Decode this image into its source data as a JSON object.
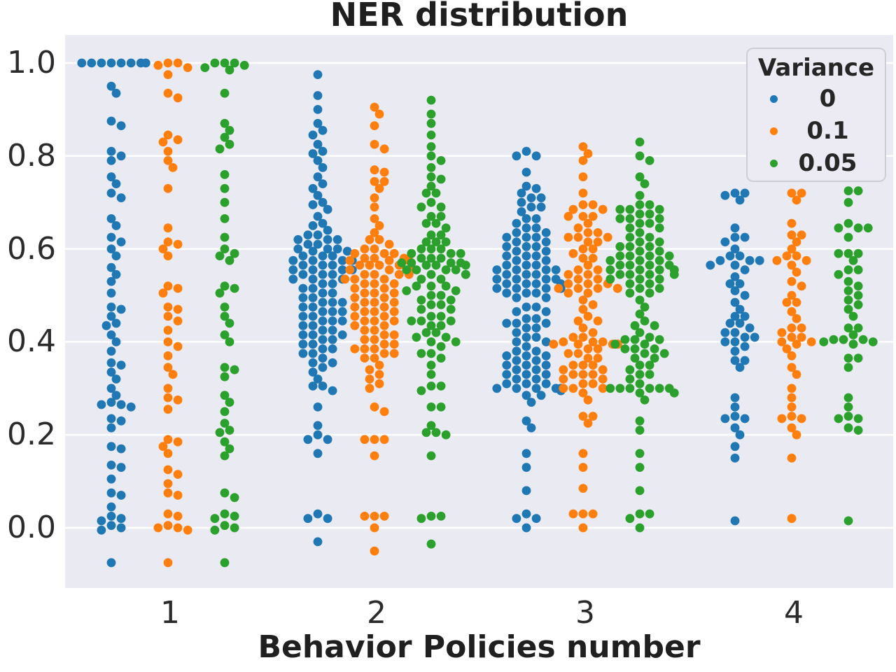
{
  "chart_data": {
    "type": "scatter",
    "subtype": "swarm",
    "title": "NER distribution",
    "xlabel": "Behavior Policies number",
    "ylabel": "",
    "categories": [
      "1",
      "2",
      "3",
      "4"
    ],
    "ytick_labels": [
      "0.0",
      "0.2",
      "0.4",
      "0.6",
      "0.8",
      "1.0"
    ],
    "yticks": [
      0.0,
      0.2,
      0.4,
      0.6,
      0.8,
      1.0
    ],
    "ylim": [
      -0.13,
      1.07
    ],
    "grid": true,
    "colors": {
      "plot_bg": "#eaeaf2",
      "grid": "#ffffff",
      "text": "#262626"
    },
    "legend": {
      "title": "Variance",
      "position": "upper-right",
      "entries": [
        {
          "label": "0",
          "color": "#1f77b4"
        },
        {
          "label": "0.1",
          "color": "#ff7f0e"
        },
        {
          "label": "0.05",
          "color": "#2ca02c"
        }
      ]
    },
    "series": [
      {
        "name": "0",
        "color": "#1f77b4",
        "values": [
          [
            1.0,
            1.0,
            1.0,
            1.0,
            1.0,
            1.0,
            1.0,
            1.0,
            0.95,
            0.935,
            0.875,
            0.865,
            0.81,
            0.8,
            0.79,
            0.755,
            0.74,
            0.72,
            0.71,
            0.665,
            0.65,
            0.625,
            0.615,
            0.6,
            0.585,
            0.56,
            0.545,
            0.53,
            0.505,
            0.475,
            0.47,
            0.455,
            0.44,
            0.435,
            0.415,
            0.4,
            0.38,
            0.355,
            0.35,
            0.335,
            0.32,
            0.3,
            0.285,
            0.27,
            0.265,
            0.265,
            0.26,
            0.235,
            0.23,
            0.215,
            0.175,
            0.17,
            0.135,
            0.13,
            0.105,
            0.075,
            0.07,
            0.045,
            0.025,
            0.02,
            0.015,
            0.005,
            0.0,
            -0.005,
            -0.075
          ],
          [
            0.975,
            0.93,
            0.9,
            0.87,
            0.855,
            0.845,
            0.825,
            0.81,
            0.805,
            0.79,
            0.775,
            0.755,
            0.74,
            0.73,
            0.715,
            0.7,
            0.695,
            0.685,
            0.67,
            0.655,
            0.65,
            0.64,
            0.63,
            0.63,
            0.62,
            0.62,
            0.62,
            0.61,
            0.61,
            0.6,
            0.6,
            0.6,
            0.595,
            0.595,
            0.585,
            0.585,
            0.585,
            0.575,
            0.575,
            0.575,
            0.575,
            0.565,
            0.565,
            0.565,
            0.555,
            0.555,
            0.555,
            0.555,
            0.545,
            0.545,
            0.545,
            0.535,
            0.535,
            0.535,
            0.525,
            0.525,
            0.515,
            0.515,
            0.505,
            0.505,
            0.495,
            0.495,
            0.485,
            0.485,
            0.485,
            0.475,
            0.475,
            0.465,
            0.465,
            0.465,
            0.455,
            0.455,
            0.445,
            0.445,
            0.445,
            0.435,
            0.435,
            0.425,
            0.425,
            0.415,
            0.415,
            0.415,
            0.405,
            0.405,
            0.395,
            0.395,
            0.385,
            0.385,
            0.375,
            0.375,
            0.365,
            0.355,
            0.355,
            0.345,
            0.335,
            0.32,
            0.305,
            0.305,
            0.295,
            0.26,
            0.22,
            0.2,
            0.19,
            0.19,
            0.16,
            0.03,
            0.02,
            0.02,
            -0.03
          ],
          [
            0.81,
            0.8,
            0.8,
            0.765,
            0.735,
            0.73,
            0.72,
            0.71,
            0.71,
            0.7,
            0.69,
            0.69,
            0.68,
            0.665,
            0.665,
            0.655,
            0.645,
            0.645,
            0.635,
            0.635,
            0.625,
            0.625,
            0.625,
            0.615,
            0.615,
            0.605,
            0.605,
            0.605,
            0.595,
            0.595,
            0.585,
            0.585,
            0.585,
            0.575,
            0.575,
            0.565,
            0.565,
            0.565,
            0.555,
            0.555,
            0.555,
            0.555,
            0.545,
            0.545,
            0.545,
            0.535,
            0.535,
            0.535,
            0.535,
            0.525,
            0.525,
            0.525,
            0.525,
            0.515,
            0.515,
            0.515,
            0.515,
            0.515,
            0.505,
            0.505,
            0.505,
            0.495,
            0.495,
            0.475,
            0.475,
            0.465,
            0.465,
            0.45,
            0.45,
            0.44,
            0.44,
            0.44,
            0.43,
            0.43,
            0.42,
            0.41,
            0.41,
            0.4,
            0.4,
            0.39,
            0.38,
            0.38,
            0.37,
            0.37,
            0.37,
            0.36,
            0.36,
            0.35,
            0.35,
            0.35,
            0.34,
            0.34,
            0.33,
            0.33,
            0.33,
            0.32,
            0.32,
            0.31,
            0.31,
            0.31,
            0.3,
            0.3,
            0.3,
            0.3,
            0.3,
            0.3,
            0.295,
            0.295,
            0.285,
            0.285,
            0.27,
            0.23,
            0.215,
            0.16,
            0.13,
            0.08,
            0.03,
            0.02,
            0.02,
            0.0
          ],
          [
            0.72,
            0.72,
            0.715,
            0.705,
            0.645,
            0.625,
            0.625,
            0.615,
            0.6,
            0.585,
            0.585,
            0.575,
            0.575,
            0.575,
            0.565,
            0.565,
            0.555,
            0.54,
            0.525,
            0.525,
            0.51,
            0.5,
            0.485,
            0.47,
            0.455,
            0.455,
            0.44,
            0.44,
            0.43,
            0.42,
            0.42,
            0.41,
            0.41,
            0.4,
            0.4,
            0.39,
            0.38,
            0.36,
            0.36,
            0.345,
            0.28,
            0.26,
            0.24,
            0.235,
            0.235,
            0.215,
            0.2,
            0.175,
            0.15,
            0.015
          ]
        ]
      },
      {
        "name": "0.1",
        "color": "#ff7f0e",
        "values": [
          [
            1.0,
            1.0,
            0.995,
            0.99,
            0.975,
            0.935,
            0.925,
            0.845,
            0.835,
            0.83,
            0.81,
            0.79,
            0.775,
            0.73,
            0.645,
            0.615,
            0.61,
            0.6,
            0.585,
            0.52,
            0.515,
            0.505,
            0.475,
            0.47,
            0.455,
            0.445,
            0.425,
            0.4,
            0.39,
            0.37,
            0.345,
            0.33,
            0.3,
            0.28,
            0.275,
            0.255,
            0.19,
            0.185,
            0.175,
            0.16,
            0.125,
            0.115,
            0.095,
            0.075,
            0.07,
            0.03,
            0.025,
            0.005,
            0.0,
            0.0,
            -0.005,
            -0.075
          ],
          [
            0.905,
            0.89,
            0.865,
            0.825,
            0.815,
            0.77,
            0.765,
            0.745,
            0.745,
            0.73,
            0.71,
            0.69,
            0.665,
            0.65,
            0.635,
            0.62,
            0.62,
            0.61,
            0.6,
            0.6,
            0.59,
            0.59,
            0.59,
            0.58,
            0.58,
            0.58,
            0.575,
            0.575,
            0.575,
            0.565,
            0.565,
            0.565,
            0.565,
            0.555,
            0.555,
            0.555,
            0.545,
            0.545,
            0.545,
            0.545,
            0.535,
            0.535,
            0.535,
            0.525,
            0.525,
            0.525,
            0.515,
            0.515,
            0.505,
            0.505,
            0.505,
            0.495,
            0.495,
            0.485,
            0.485,
            0.485,
            0.475,
            0.475,
            0.465,
            0.465,
            0.465,
            0.455,
            0.455,
            0.445,
            0.445,
            0.445,
            0.435,
            0.435,
            0.425,
            0.425,
            0.415,
            0.415,
            0.405,
            0.405,
            0.395,
            0.395,
            0.385,
            0.385,
            0.385,
            0.375,
            0.375,
            0.365,
            0.365,
            0.35,
            0.34,
            0.33,
            0.32,
            0.31,
            0.3,
            0.26,
            0.25,
            0.19,
            0.19,
            0.19,
            0.155,
            0.025,
            0.025,
            0.025,
            0.0,
            -0.05
          ],
          [
            0.82,
            0.805,
            0.79,
            0.755,
            0.72,
            0.695,
            0.695,
            0.685,
            0.685,
            0.67,
            0.67,
            0.67,
            0.655,
            0.645,
            0.635,
            0.635,
            0.625,
            0.625,
            0.625,
            0.615,
            0.615,
            0.6,
            0.6,
            0.59,
            0.58,
            0.58,
            0.565,
            0.555,
            0.555,
            0.545,
            0.545,
            0.535,
            0.535,
            0.525,
            0.525,
            0.525,
            0.515,
            0.515,
            0.515,
            0.515,
            0.515,
            0.515,
            0.505,
            0.505,
            0.49,
            0.48,
            0.47,
            0.455,
            0.445,
            0.445,
            0.43,
            0.42,
            0.41,
            0.41,
            0.4,
            0.4,
            0.4,
            0.395,
            0.395,
            0.395,
            0.395,
            0.395,
            0.395,
            0.385,
            0.385,
            0.375,
            0.375,
            0.365,
            0.365,
            0.35,
            0.35,
            0.35,
            0.34,
            0.34,
            0.33,
            0.33,
            0.33,
            0.32,
            0.32,
            0.31,
            0.31,
            0.3,
            0.3,
            0.3,
            0.29,
            0.275,
            0.24,
            0.24,
            0.225,
            0.16,
            0.13,
            0.085,
            0.03,
            0.03,
            0.03,
            0.0
          ],
          [
            0.72,
            0.72,
            0.705,
            0.655,
            0.63,
            0.63,
            0.615,
            0.6,
            0.585,
            0.585,
            0.575,
            0.575,
            0.565,
            0.55,
            0.53,
            0.52,
            0.5,
            0.485,
            0.485,
            0.465,
            0.45,
            0.43,
            0.43,
            0.42,
            0.41,
            0.41,
            0.4,
            0.4,
            0.395,
            0.385,
            0.37,
            0.345,
            0.33,
            0.3,
            0.28,
            0.26,
            0.24,
            0.235,
            0.235,
            0.215,
            0.2,
            0.15,
            0.02
          ]
        ]
      },
      {
        "name": "0.05",
        "color": "#2ca02c",
        "values": [
          [
            1.0,
            1.0,
            1.0,
            0.995,
            0.99,
            0.985,
            0.935,
            0.87,
            0.855,
            0.84,
            0.825,
            0.815,
            0.76,
            0.73,
            0.7,
            0.665,
            0.625,
            0.6,
            0.59,
            0.585,
            0.575,
            0.52,
            0.515,
            0.505,
            0.475,
            0.455,
            0.44,
            0.415,
            0.4,
            0.345,
            0.34,
            0.325,
            0.285,
            0.27,
            0.25,
            0.225,
            0.21,
            0.205,
            0.185,
            0.17,
            0.155,
            0.075,
            0.065,
            0.03,
            0.025,
            0.02,
            0.005,
            0.0,
            -0.005,
            -0.075
          ],
          [
            0.92,
            0.89,
            0.87,
            0.845,
            0.82,
            0.8,
            0.79,
            0.775,
            0.755,
            0.75,
            0.735,
            0.72,
            0.72,
            0.7,
            0.69,
            0.69,
            0.67,
            0.67,
            0.655,
            0.655,
            0.645,
            0.63,
            0.63,
            0.615,
            0.615,
            0.615,
            0.6,
            0.6,
            0.6,
            0.59,
            0.59,
            0.59,
            0.58,
            0.58,
            0.58,
            0.57,
            0.57,
            0.57,
            0.57,
            0.565,
            0.565,
            0.565,
            0.555,
            0.555,
            0.555,
            0.555,
            0.545,
            0.545,
            0.545,
            0.535,
            0.535,
            0.52,
            0.52,
            0.52,
            0.51,
            0.51,
            0.5,
            0.5,
            0.49,
            0.49,
            0.48,
            0.48,
            0.47,
            0.47,
            0.455,
            0.455,
            0.445,
            0.445,
            0.445,
            0.435,
            0.435,
            0.42,
            0.42,
            0.41,
            0.41,
            0.4,
            0.4,
            0.39,
            0.375,
            0.375,
            0.365,
            0.35,
            0.33,
            0.305,
            0.305,
            0.295,
            0.26,
            0.26,
            0.22,
            0.205,
            0.205,
            0.2,
            0.155,
            0.025,
            0.025,
            0.02,
            -0.035
          ],
          [
            0.83,
            0.8,
            0.79,
            0.755,
            0.74,
            0.715,
            0.695,
            0.695,
            0.685,
            0.685,
            0.685,
            0.675,
            0.675,
            0.665,
            0.665,
            0.665,
            0.655,
            0.655,
            0.645,
            0.645,
            0.635,
            0.625,
            0.625,
            0.615,
            0.615,
            0.605,
            0.605,
            0.605,
            0.595,
            0.595,
            0.585,
            0.585,
            0.585,
            0.585,
            0.575,
            0.575,
            0.575,
            0.565,
            0.565,
            0.565,
            0.565,
            0.555,
            0.555,
            0.555,
            0.555,
            0.555,
            0.545,
            0.545,
            0.545,
            0.545,
            0.535,
            0.535,
            0.535,
            0.525,
            0.525,
            0.515,
            0.515,
            0.505,
            0.505,
            0.49,
            0.475,
            0.46,
            0.445,
            0.435,
            0.435,
            0.42,
            0.41,
            0.405,
            0.405,
            0.405,
            0.395,
            0.395,
            0.385,
            0.385,
            0.385,
            0.375,
            0.375,
            0.365,
            0.365,
            0.35,
            0.35,
            0.34,
            0.33,
            0.33,
            0.32,
            0.31,
            0.3,
            0.3,
            0.3,
            0.3,
            0.3,
            0.3,
            0.29,
            0.29,
            0.275,
            0.23,
            0.21,
            0.16,
            0.13,
            0.08,
            0.03,
            0.03,
            0.02,
            0.0
          ],
          [
            0.725,
            0.725,
            0.7,
            0.655,
            0.645,
            0.645,
            0.645,
            0.625,
            0.59,
            0.59,
            0.59,
            0.575,
            0.555,
            0.555,
            0.545,
            0.53,
            0.52,
            0.51,
            0.5,
            0.49,
            0.48,
            0.47,
            0.455,
            0.43,
            0.43,
            0.415,
            0.405,
            0.405,
            0.405,
            0.4,
            0.4,
            0.395,
            0.365,
            0.365,
            0.345,
            0.28,
            0.26,
            0.24,
            0.235,
            0.235,
            0.215,
            0.21,
            0.015
          ]
        ]
      }
    ]
  }
}
